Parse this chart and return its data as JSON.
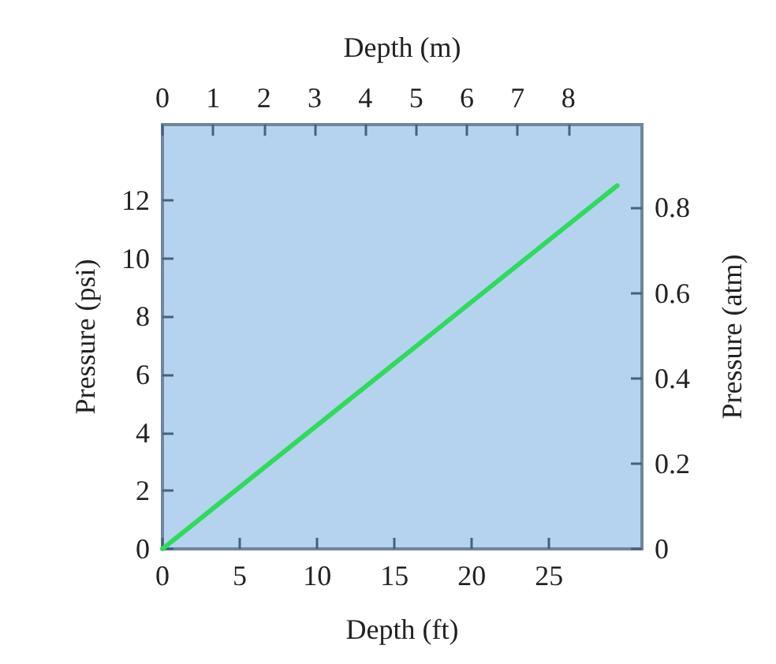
{
  "chart_data": {
    "type": "line",
    "xlabel": "Depth (ft)",
    "ylabel": "Pressure (psi)",
    "x2label": "Depth (m)",
    "y2label": "Pressure (atm)",
    "x": [
      0,
      29.4
    ],
    "series": [
      {
        "color": "#2edb5a",
        "values": [
          0,
          12.5
        ]
      }
    ],
    "xlim": [
      0,
      31
    ],
    "xticks": [
      0,
      5,
      10,
      15,
      20,
      25
    ],
    "ylim": [
      0,
      14.6
    ],
    "yticks": [
      0,
      2,
      4,
      6,
      8,
      10,
      12
    ],
    "x2lim": [
      0,
      9.45
    ],
    "x2ticks": [
      0,
      1,
      2,
      3,
      4,
      5,
      6,
      7,
      8
    ],
    "y2lim": [
      0,
      0.995
    ],
    "y2ticks": [
      0,
      0.2,
      0.4,
      0.6,
      0.8
    ],
    "grid": false
  }
}
